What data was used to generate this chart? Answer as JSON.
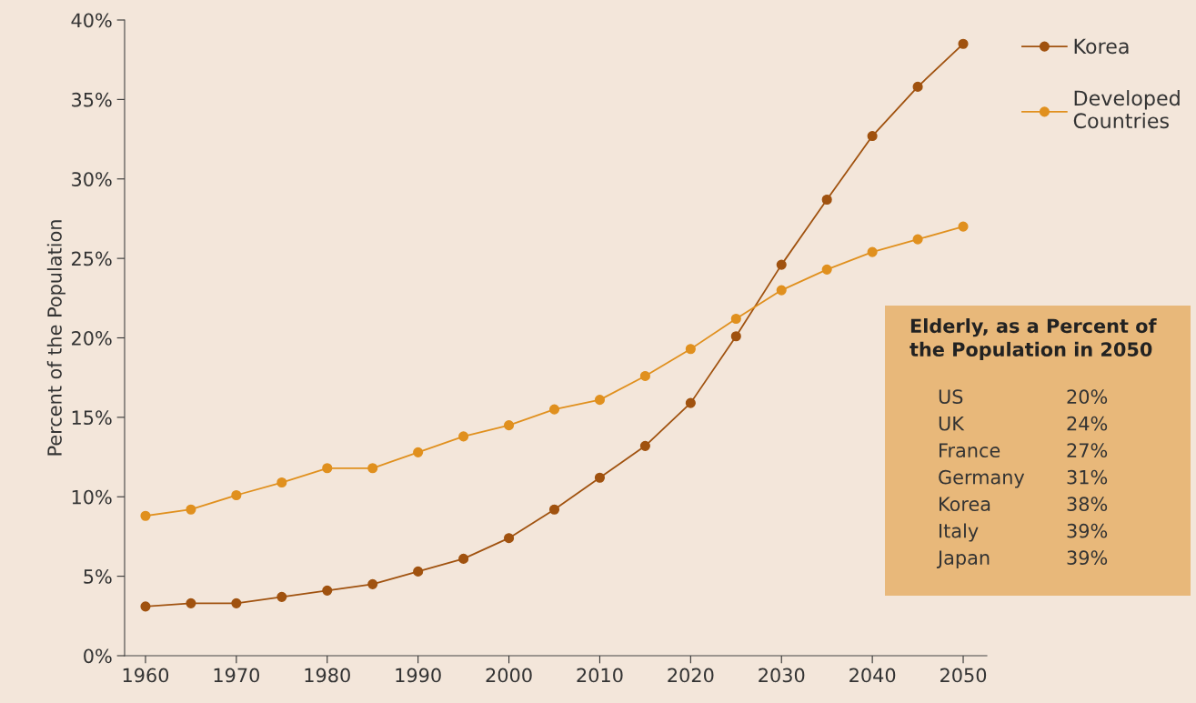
{
  "chart_data": {
    "type": "line",
    "ylabel": "Percent of the Population",
    "x": [
      1960,
      1965,
      1970,
      1975,
      1980,
      1985,
      1990,
      1995,
      2000,
      2005,
      2010,
      2015,
      2020,
      2025,
      2030,
      2035,
      2040,
      2045,
      2050
    ],
    "series": [
      {
        "name": "Korea",
        "color": "#a0520f",
        "values": [
          3.1,
          3.3,
          3.3,
          3.7,
          4.1,
          4.5,
          5.3,
          6.1,
          7.4,
          9.2,
          11.2,
          13.2,
          15.9,
          20.1,
          24.6,
          28.7,
          32.7,
          35.8,
          38.5
        ]
      },
      {
        "name": "Developed\nCountries",
        "color": "#e0901e",
        "values": [
          8.8,
          9.2,
          10.1,
          10.9,
          11.8,
          11.8,
          12.8,
          13.8,
          14.5,
          15.5,
          16.1,
          17.6,
          19.3,
          21.2,
          23.0,
          24.3,
          25.4,
          26.2,
          27.0
        ]
      }
    ],
    "xlim": [
      1957.7,
      2052.6
    ],
    "xticks": [
      1960,
      1970,
      1980,
      1990,
      2000,
      2010,
      2020,
      2030,
      2040,
      2050
    ],
    "ylim": [
      0,
      40
    ],
    "yticks": [
      {
        "value": 0,
        "label": "0%"
      },
      {
        "value": 5,
        "label": "5%"
      },
      {
        "value": 10,
        "label": "10%"
      },
      {
        "value": 15,
        "label": "15%"
      },
      {
        "value": 20,
        "label": "20%"
      },
      {
        "value": 25,
        "label": "25%"
      },
      {
        "value": 30,
        "label": "30%"
      },
      {
        "value": 35,
        "label": "35%"
      },
      {
        "value": 40,
        "label": "40%"
      }
    ],
    "grid": false,
    "legend": "top right",
    "marker": "circle",
    "line_style": "solid",
    "annotations": [
      "Elderly, as a Percent of\nthe Population in 2050",
      "US",
      "20%",
      "UK",
      "24%",
      "France",
      "27%",
      "Germany",
      "31%",
      "Korea",
      "38%",
      "Italy",
      "39%",
      "Japan",
      "39%"
    ]
  }
}
